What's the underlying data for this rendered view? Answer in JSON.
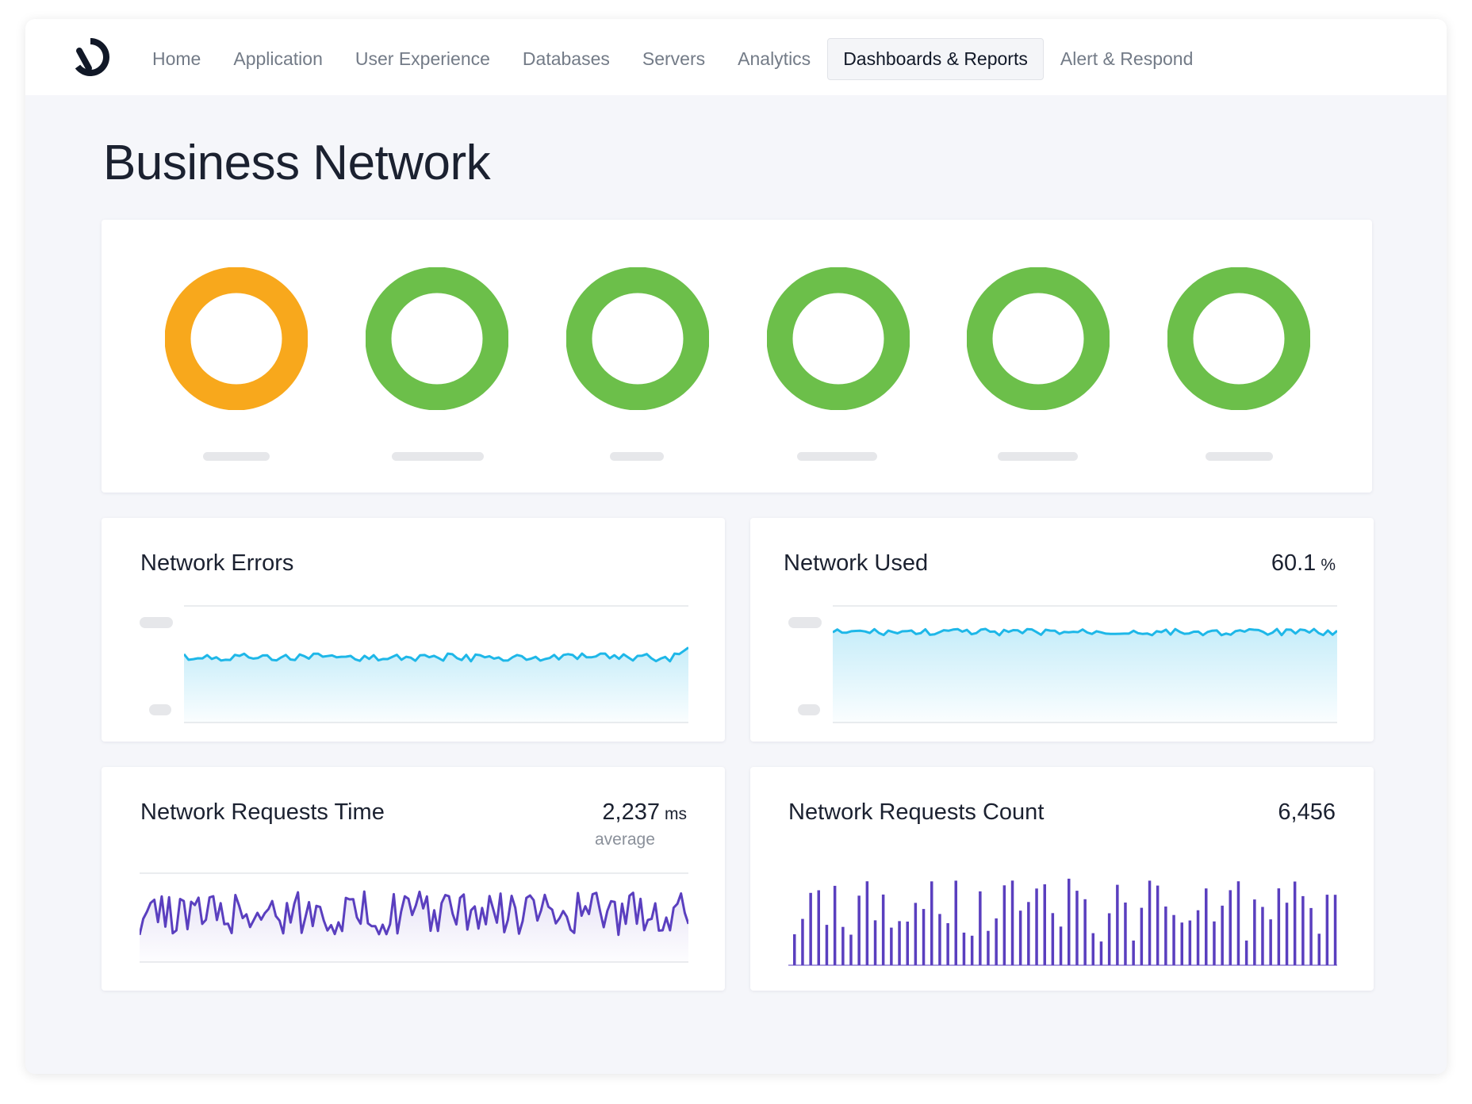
{
  "app": {
    "logo_icon": "brand-logo-icon"
  },
  "nav": {
    "items": [
      {
        "label": "Home",
        "active": false
      },
      {
        "label": "Application",
        "active": false
      },
      {
        "label": "User Experience",
        "active": false
      },
      {
        "label": "Databases",
        "active": false
      },
      {
        "label": "Servers",
        "active": false
      },
      {
        "label": "Analytics",
        "active": false
      },
      {
        "label": "Dashboards & Reports",
        "active": true
      },
      {
        "label": "Alert & Respond",
        "active": false
      }
    ]
  },
  "page": {
    "title": "Business Network"
  },
  "status_rings": [
    {
      "status": "warning",
      "color": "#f8a81c"
    },
    {
      "status": "ok",
      "color": "#6cbf4a"
    },
    {
      "status": "ok",
      "color": "#6cbf4a"
    },
    {
      "status": "ok",
      "color": "#6cbf4a"
    },
    {
      "status": "ok",
      "color": "#6cbf4a"
    },
    {
      "status": "ok",
      "color": "#6cbf4a"
    }
  ],
  "widgets": {
    "network_errors": {
      "title": "Network Errors",
      "line_color": "#1eb7e8"
    },
    "network_used": {
      "title": "Network Used",
      "value": "60.1",
      "unit": "%",
      "line_color": "#1eb7e8"
    },
    "requests_time": {
      "title": "Network Requests Time",
      "value": "2,237",
      "unit": "ms",
      "sub": "average",
      "line_color": "#5a3fbf"
    },
    "requests_count": {
      "title": "Network Requests Count",
      "value": "6,456",
      "bar_color": "#5a3fbf"
    }
  },
  "colors": {
    "accent_cyan": "#1eb7e8",
    "accent_purple": "#5a3fbf",
    "status_warning": "#f8a81c",
    "status_ok": "#6cbf4a"
  }
}
